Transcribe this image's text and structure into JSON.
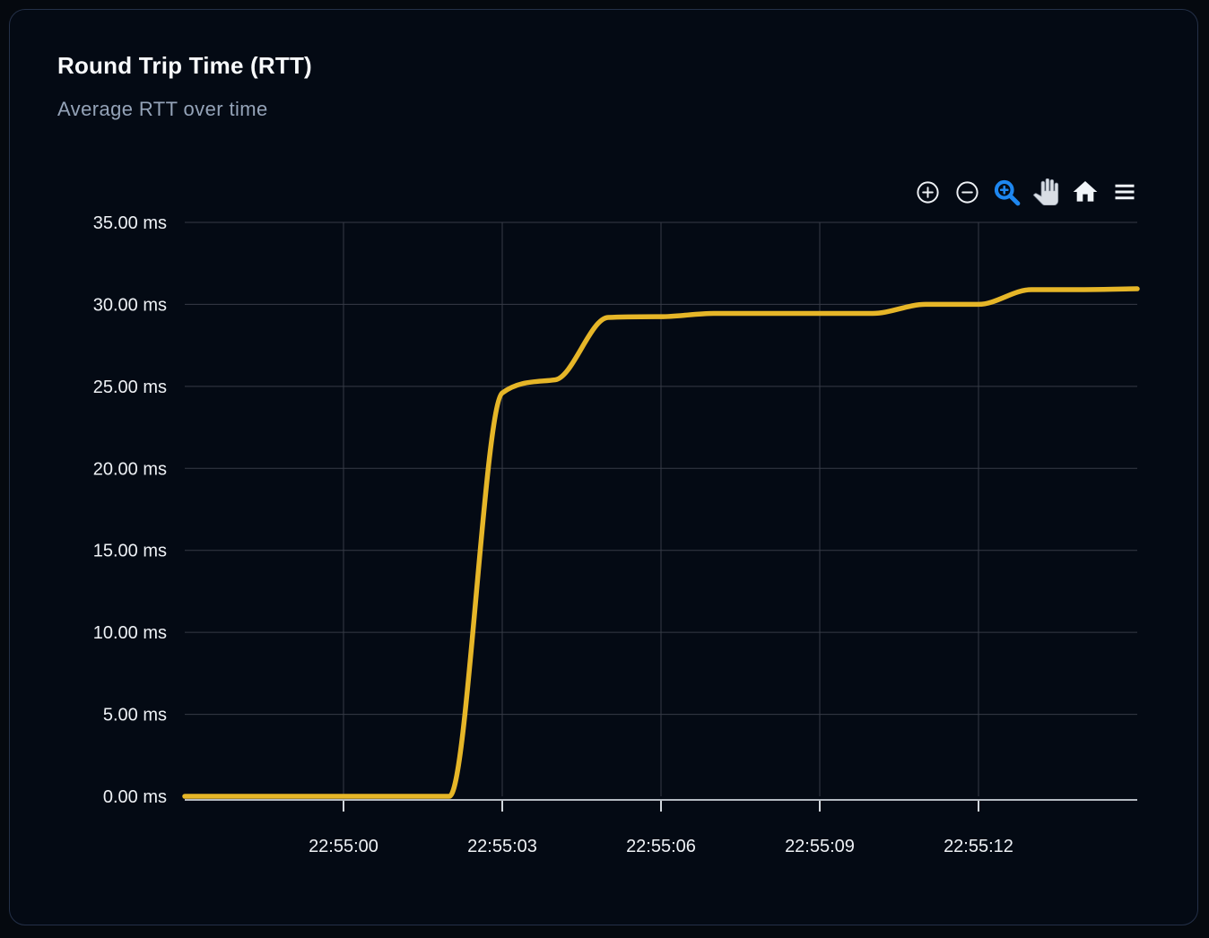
{
  "card": {
    "title": "Round Trip Time (RTT)",
    "subtitle": "Average RTT over time"
  },
  "toolbar": {
    "items": [
      {
        "icon": "zoom-in-icon"
      },
      {
        "icon": "zoom-out-icon"
      },
      {
        "icon": "selection-zoom-icon",
        "active": true
      },
      {
        "icon": "pan-hand-icon"
      },
      {
        "icon": "home-icon"
      },
      {
        "icon": "menu-icon"
      }
    ]
  },
  "colors": {
    "page_background": "#05090f",
    "card_background": "#040a14",
    "card_border": "#243048",
    "title_text": "#f8fafc",
    "subtitle_text": "#94a3b8",
    "label_text": "#eef1f5",
    "grid_line": "#363b46",
    "axis_line": "#b4bac2",
    "tick_mark": "#d2d7dd",
    "series_line": "#e6b628",
    "accent_blue": "#1e87f0",
    "icon_white": "#eef1f5",
    "pan_hand_fill": "#d9dee5"
  },
  "chart_data": {
    "type": "line",
    "title": "Round Trip Time (RTT)",
    "subtitle": "Average RTT over time",
    "curve": "smooth",
    "grid": true,
    "legend": "none",
    "y_unit": "ms",
    "ylim": [
      0,
      35
    ],
    "x_range": [
      "22:54:57",
      "22:55:15"
    ],
    "x_tick_labels": [
      "22:55:00",
      "22:55:03",
      "22:55:06",
      "22:55:09",
      "22:55:12"
    ],
    "y_ticks": [
      {
        "value": 0,
        "label": "0.00 ms"
      },
      {
        "value": 5,
        "label": "5.00 ms"
      },
      {
        "value": 10,
        "label": "10.00 ms"
      },
      {
        "value": 15,
        "label": "15.00 ms"
      },
      {
        "value": 20,
        "label": "20.00 ms"
      },
      {
        "value": 25,
        "label": "25.00 ms"
      },
      {
        "value": 30,
        "label": "30.00 ms"
      },
      {
        "value": 35,
        "label": "35.00 ms"
      }
    ],
    "series": [
      {
        "name": "Average RTT",
        "color": "#e6b628",
        "x": [
          "22:54:57",
          "22:54:58",
          "22:54:59",
          "22:55:00",
          "22:55:01",
          "22:55:02",
          "22:55:03",
          "22:55:04",
          "22:55:05",
          "22:55:06",
          "22:55:07",
          "22:55:08",
          "22:55:09",
          "22:55:10",
          "22:55:11",
          "22:55:12",
          "22:55:13",
          "22:55:14",
          "22:55:15"
        ],
        "values": [
          0,
          0,
          0,
          0,
          0,
          0,
          24.6,
          25.4,
          29.2,
          29.25,
          29.45,
          29.45,
          29.45,
          29.45,
          30,
          30,
          30.9,
          30.9,
          30.95
        ]
      }
    ]
  }
}
